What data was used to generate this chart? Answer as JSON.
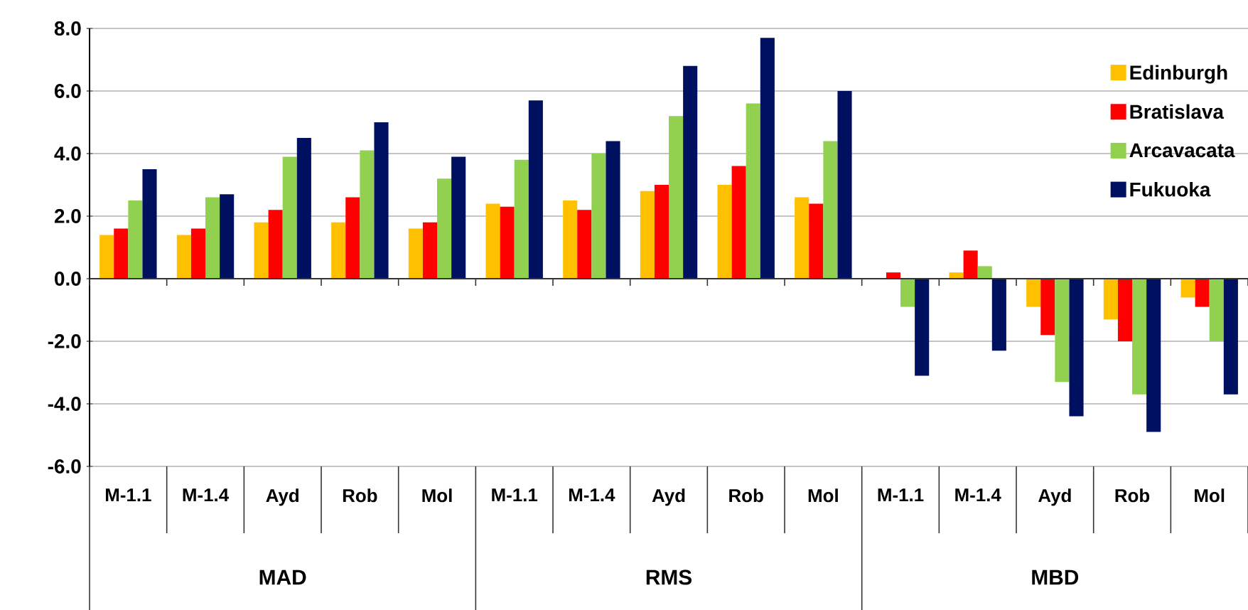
{
  "chart_data": {
    "type": "bar",
    "categories": [
      "M-1.1",
      "M-1.4",
      "Ayd",
      "Rob",
      "Mol",
      "M-1.1",
      "M-1.4",
      "Ayd",
      "Rob",
      "Mol",
      "M-1.1",
      "M-1.4",
      "Ayd",
      "Rob",
      "Mol"
    ],
    "series": [
      {
        "name": "Edinburgh",
        "color": "#ffc000",
        "values": [
          1.4,
          1.4,
          1.8,
          1.8,
          1.6,
          2.4,
          2.5,
          2.8,
          3.0,
          2.6,
          0.0,
          0.2,
          -0.9,
          -1.3,
          -0.6
        ]
      },
      {
        "name": "Bratislava",
        "color": "#ff0000",
        "values": [
          1.6,
          1.6,
          2.2,
          2.6,
          1.8,
          2.3,
          2.2,
          3.0,
          3.6,
          2.4,
          0.2,
          0.9,
          -1.8,
          -2.0,
          -0.9
        ]
      },
      {
        "name": "Arcavacata",
        "color": "#92d050",
        "values": [
          2.5,
          2.6,
          3.9,
          4.1,
          3.2,
          3.8,
          4.0,
          5.2,
          5.6,
          4.4,
          -0.9,
          0.4,
          -3.3,
          -3.7,
          -2.0
        ]
      },
      {
        "name": "Fukuoka",
        "color": "#001060",
        "values": [
          3.5,
          2.7,
          4.5,
          5.0,
          3.9,
          5.7,
          4.4,
          6.8,
          7.7,
          6.0,
          -3.1,
          -2.3,
          -4.4,
          -4.9,
          -3.7
        ]
      }
    ],
    "annotations": [
      "MAD",
      "RMS",
      "MBD"
    ],
    "ylim": [
      -6,
      8
    ],
    "yticks": [
      {
        "value": -6,
        "label": "-6.0"
      },
      {
        "value": -4,
        "label": "-4.0"
      },
      {
        "value": -2,
        "label": "-2.0"
      },
      {
        "value": 0,
        "label": "0.0"
      },
      {
        "value": 2,
        "label": "2.0"
      },
      {
        "value": 4,
        "label": "4.0"
      },
      {
        "value": 6,
        "label": "6.0"
      },
      {
        "value": 8,
        "label": "8.0"
      }
    ],
    "grid": "y",
    "legend": "top right"
  }
}
